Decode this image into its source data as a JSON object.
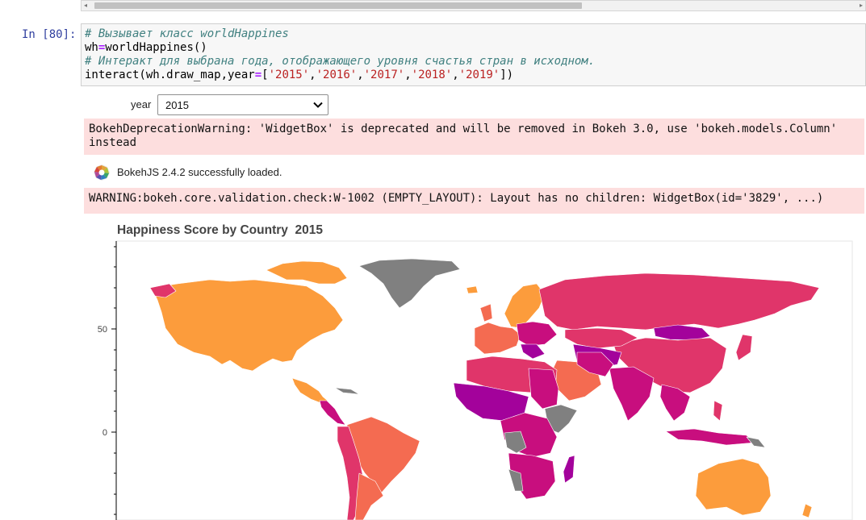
{
  "scrollbar": {
    "left_arrow": "◂",
    "right_arrow": "▸"
  },
  "cell": {
    "prompt": "In [80]:",
    "code": {
      "line1": "# Вызывает класс worldHappines",
      "line2_a": "wh",
      "line2_op": "=",
      "line2_b": "worldHappines()",
      "line3": "# Интеракт для выбрана года, отображающего уровня счастья стран в исходном.",
      "line4_a": "interact(wh.draw_map,year",
      "line4_op": "=",
      "line4_b": "[",
      "years": [
        "'2015'",
        "'2016'",
        "'2017'",
        "'2018'",
        "'2019'"
      ],
      "comma": ",",
      "line4_end": "])"
    }
  },
  "widget": {
    "label": "year",
    "selected": "2015"
  },
  "warnings": {
    "deprecation": "BokehDeprecationWarning: 'WidgetBox' is deprecated and will be removed in Bokeh 3.0, use 'bokeh.models.Column' instead",
    "empty_layout": "WARNING:bokeh.core.validation.check:W-1002 (EMPTY_LAYOUT): Layout has no children: WidgetBox(id='3829', ...)"
  },
  "bokeh_loaded": "BokehJS 2.4.2 successfully loaded.",
  "chart_data": {
    "type": "map",
    "title": "Happiness Score by Country  2015",
    "y_ticks": [
      "50",
      "0"
    ],
    "colors": {
      "high": "#fc9c3c",
      "upper": "#f46b51",
      "mid": "#e0356a",
      "lower": "#c80e7e",
      "low": "#a3029b",
      "missing": "#808080"
    }
  }
}
